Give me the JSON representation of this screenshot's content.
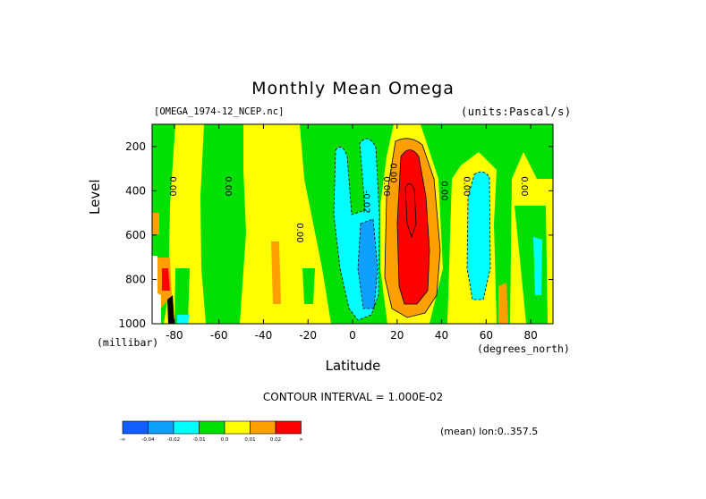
{
  "chart_data": {
    "type": "heatmap",
    "title": "Monthly Mean Omega",
    "dataset": "[OMEGA_1974-12_NCEP.nc]",
    "units": "(units:Pascal/s)",
    "xlabel": "Latitude",
    "x_unit": "(degrees_north)",
    "ylabel": "Level",
    "y_unit": "(millibar)",
    "xlim": [
      -90,
      90
    ],
    "ylim": [
      1000,
      100
    ],
    "y_inverted": true,
    "x_ticks": [
      -80,
      -60,
      -40,
      -20,
      0,
      20,
      40,
      60,
      80
    ],
    "x_tick_labels": [
      "-80",
      "-60",
      "-40",
      "-20",
      "0",
      "20",
      "40",
      "60",
      "80"
    ],
    "y_ticks": [
      200,
      400,
      600,
      800,
      1000
    ],
    "y_tick_labels": [
      "200",
      "400",
      "600",
      "800",
      "1000"
    ],
    "contour_interval_text": "CONTOUR INTERVAL = 1.000E-02",
    "mean_text": "(mean) lon:0..357.5",
    "contour_labels": [
      {
        "text": "0.00",
        "lat": -82,
        "level": 380
      },
      {
        "text": "0.00",
        "lat": -57,
        "level": 380
      },
      {
        "text": "0.00",
        "lat": -25,
        "level": 590
      },
      {
        "text": "-0.02",
        "lat": 5,
        "level": 450
      },
      {
        "text": "0.00",
        "lat": 14,
        "level": 380
      },
      {
        "text": "0.00",
        "lat": 17,
        "level": 320
      },
      {
        "text": "0.00",
        "lat": 40,
        "level": 400
      },
      {
        "text": "0.00",
        "lat": 50,
        "level": 380
      },
      {
        "text": "0.00",
        "lat": 76,
        "level": 380
      }
    ],
    "colorbar": {
      "colors": [
        "#0f5fff",
        "#0fa0ff",
        "#00ffff",
        "#00e000",
        "#ffff00",
        "#ffa000",
        "#ff0000"
      ],
      "labels": [
        "-∞",
        "-0.04",
        "-0.02",
        "-0.01",
        "0.0",
        "0.01",
        "0.02",
        "∞"
      ]
    },
    "levels": [
      -0.04,
      -0.02,
      -0.01,
      0.0,
      0.01,
      0.02
    ],
    "grid": false
  }
}
